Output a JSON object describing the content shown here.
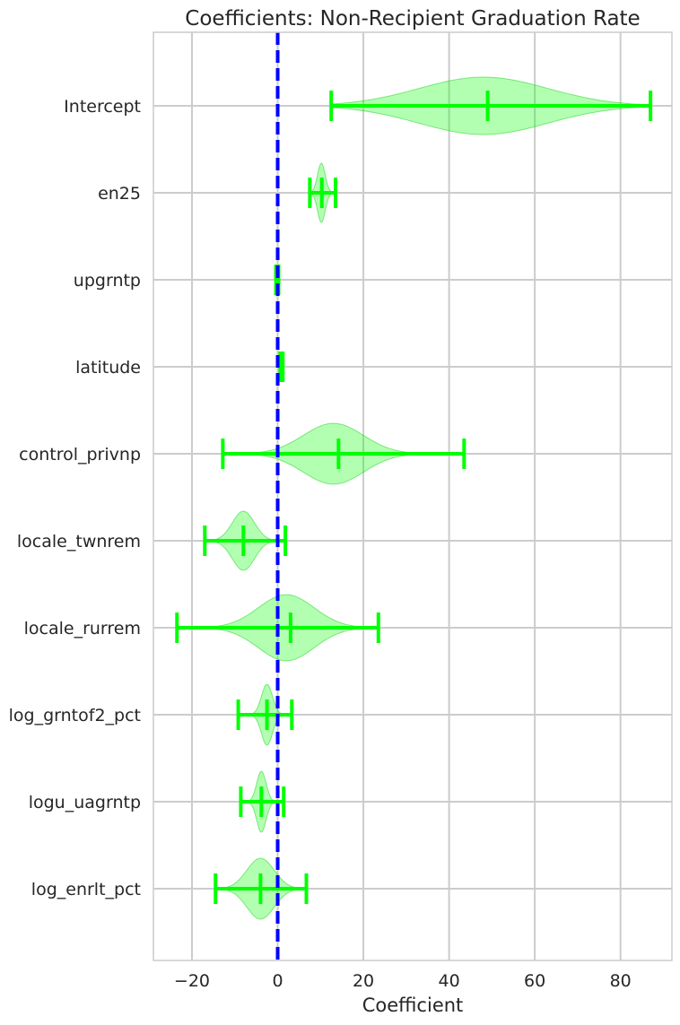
{
  "chart_data": {
    "type": "violin",
    "title": "Coefficients: Non-Recipient Graduation Rate",
    "xlabel": "Coefficient",
    "ylabel": "",
    "xlim": [
      -29,
      92
    ],
    "xticks": [
      -20,
      0,
      20,
      40,
      60,
      80
    ],
    "xtick_labels": [
      "−20",
      "0",
      "20",
      "40",
      "60",
      "80"
    ],
    "grid": true,
    "reference_line": {
      "x": 0,
      "style": "dashed",
      "color": "#0000ff"
    },
    "violin_color": "#00ff00",
    "categories": [
      "Intercept",
      "en25",
      "upgrntp",
      "latitude",
      "control_privnp",
      "locale_twnrem",
      "locale_rurrem",
      "log_grntof2_pct",
      "logu_uagrntp",
      "log_enrlt_pct"
    ],
    "series": [
      {
        "label": "Intercept",
        "min": 12.5,
        "median": 49,
        "max": 87,
        "peak": 48,
        "spread": 15,
        "halfwidth": 0.33
      },
      {
        "label": "en25",
        "min": 7.5,
        "median": 10.3,
        "max": 13.5,
        "peak": 10.2,
        "spread": 0.9,
        "halfwidth": 0.34
      },
      {
        "label": "upgrntp",
        "min": -0.4,
        "median": -0.1,
        "max": 0.2,
        "peak": -0.1,
        "spread": 0.1,
        "halfwidth": 0.1
      },
      {
        "label": "latitude",
        "min": 0.6,
        "median": 0.9,
        "max": 1.2,
        "peak": 0.9,
        "spread": 0.1,
        "halfwidth": 0.14
      },
      {
        "label": "control_privnp",
        "min": -12.8,
        "median": 14.2,
        "max": 43.5,
        "peak": 13,
        "spread": 7,
        "halfwidth": 0.35
      },
      {
        "label": "locale_twnrem",
        "min": -17,
        "median": -8,
        "max": 1.8,
        "peak": -8,
        "spread": 2.6,
        "halfwidth": 0.34
      },
      {
        "label": "locale_rurrem",
        "min": -23.5,
        "median": 3,
        "max": 23.5,
        "peak": 2,
        "spread": 6.5,
        "halfwidth": 0.38
      },
      {
        "label": "log_grntof2_pct",
        "min": -9.2,
        "median": -2.5,
        "max": 3.3,
        "peak": -2.5,
        "spread": 1.3,
        "halfwidth": 0.35
      },
      {
        "label": "logu_uagrntp",
        "min": -8.6,
        "median": -3.8,
        "max": 1.4,
        "peak": -3.8,
        "spread": 1.1,
        "halfwidth": 0.35
      },
      {
        "label": "log_enrlt_pct",
        "min": -14.5,
        "median": -4,
        "max": 6.7,
        "peak": -4,
        "spread": 3.2,
        "halfwidth": 0.35
      }
    ]
  }
}
